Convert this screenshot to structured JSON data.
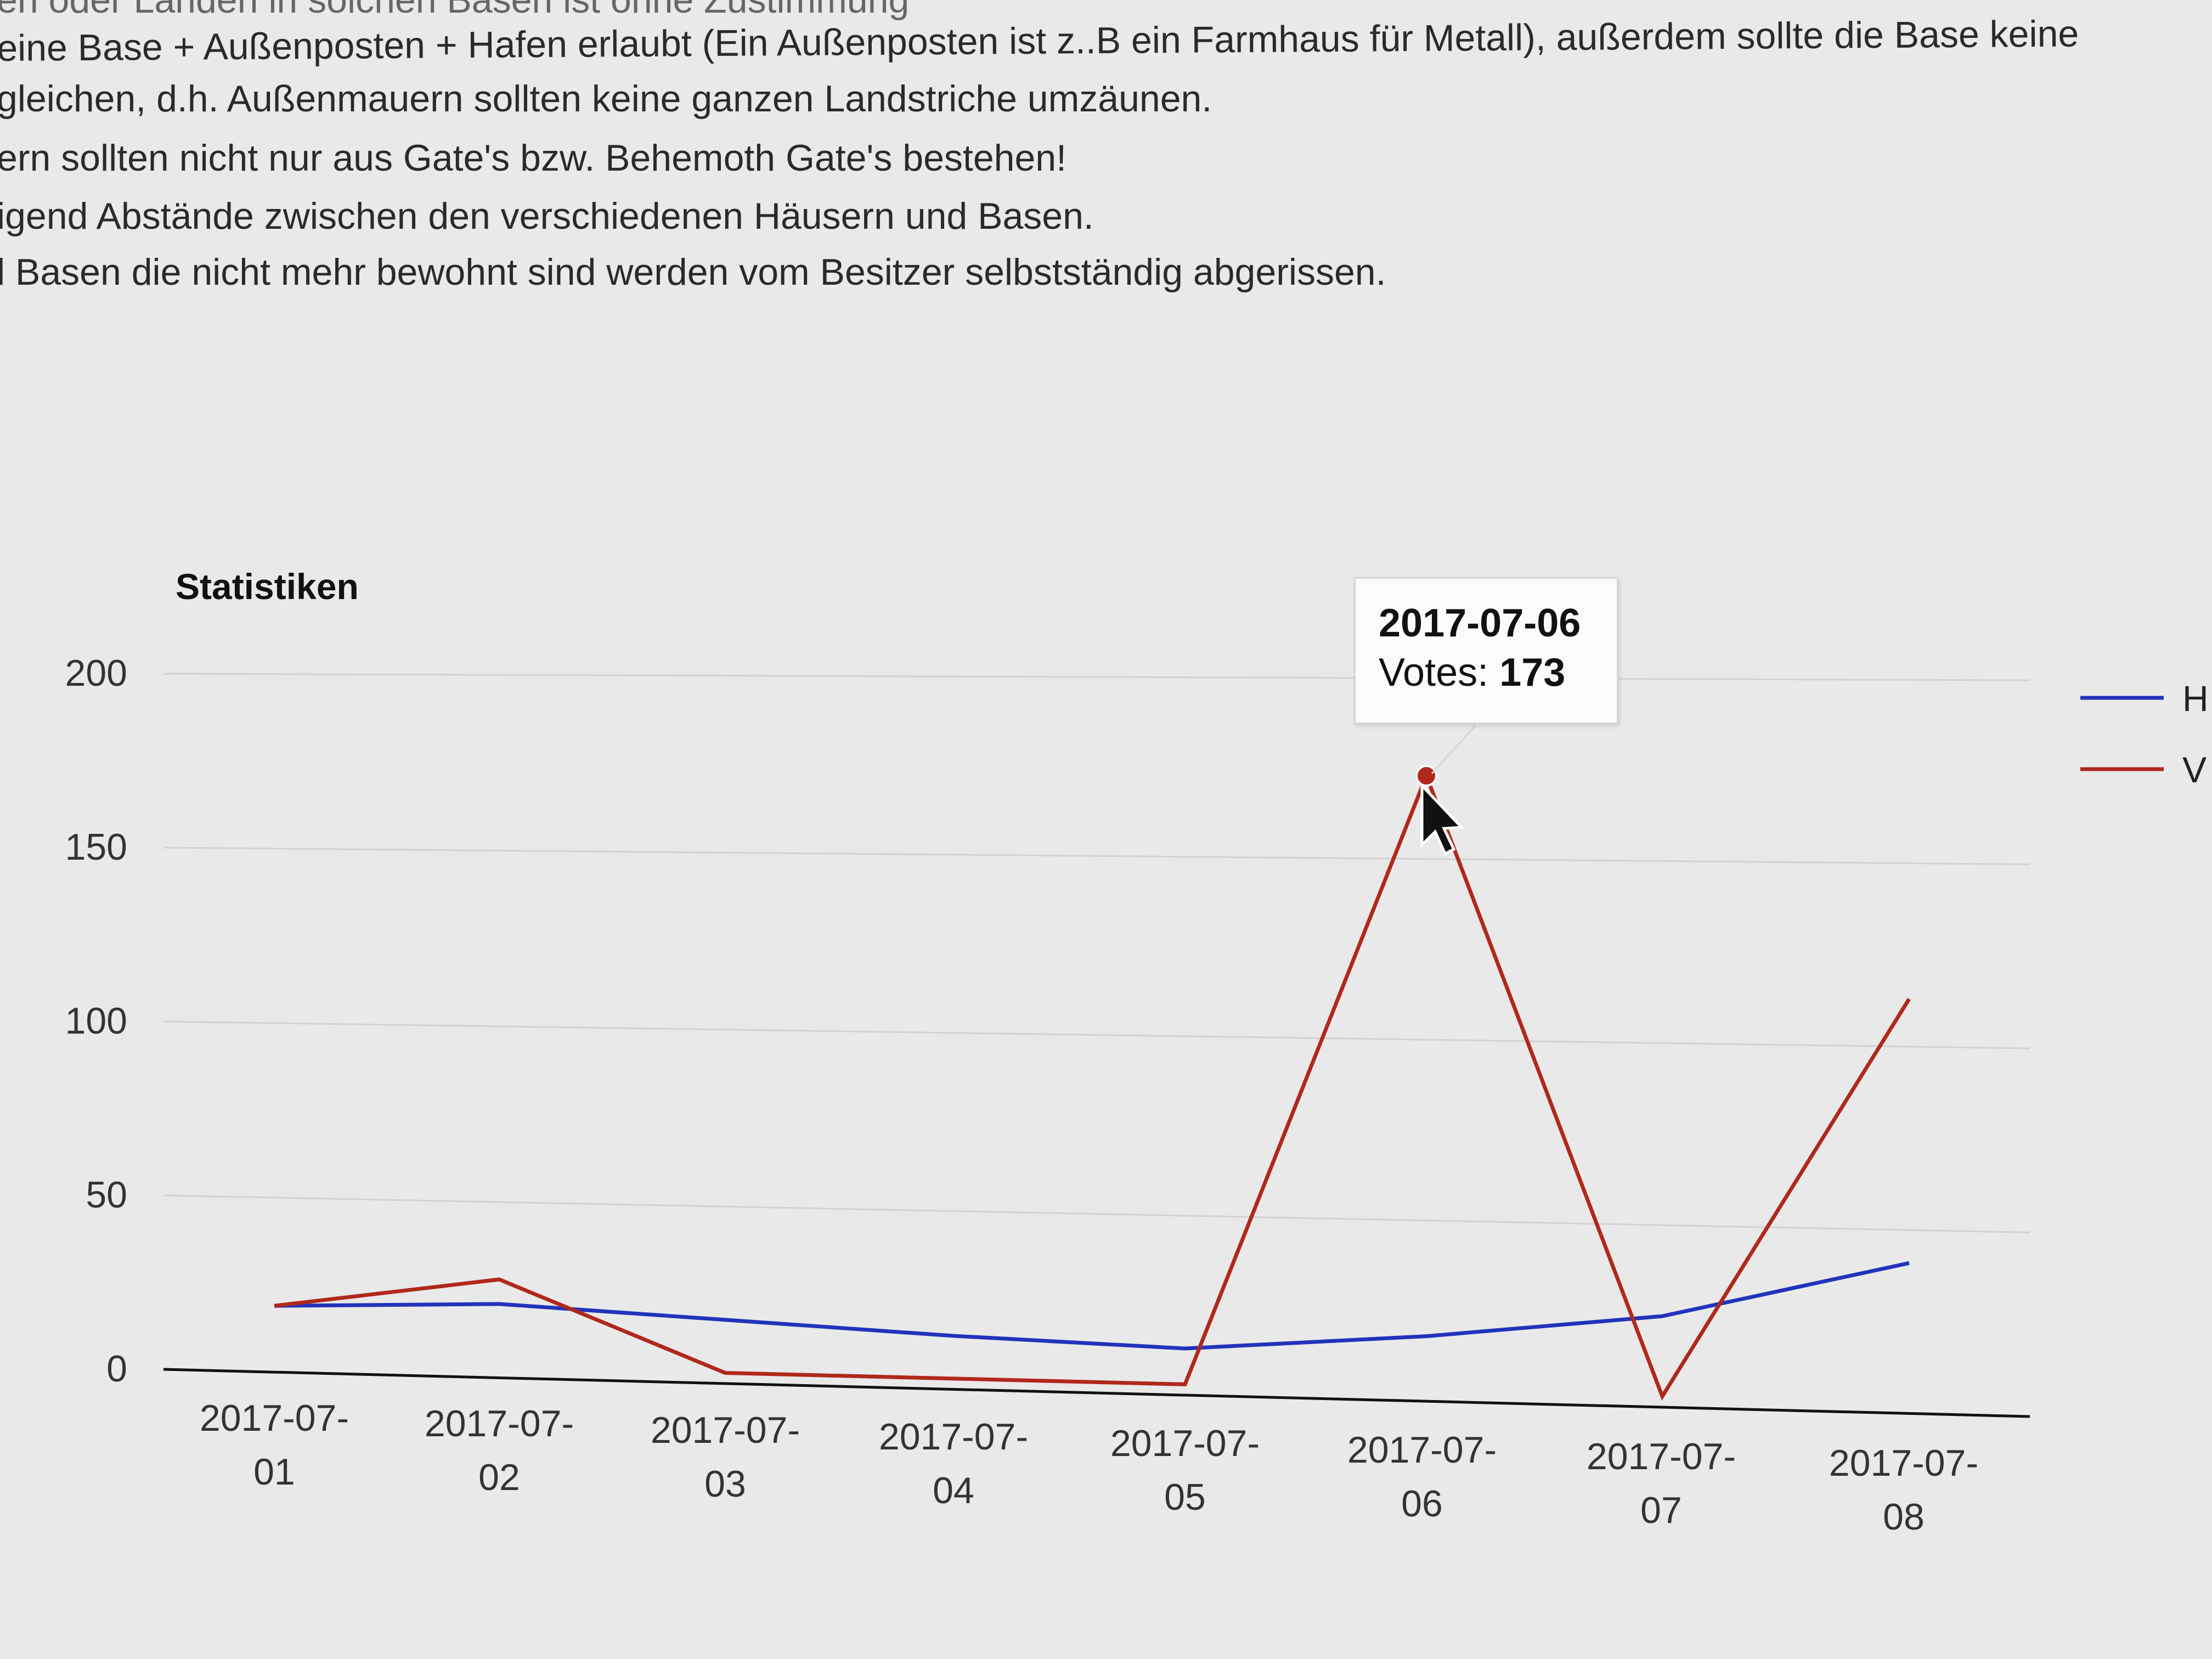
{
  "rules_text": [
    "en oder Landen in solchen Basen ist ohne Zustimmung",
    "eine Base + Außenposten + Hafen erlaubt (Ein Außenposten ist z..B ein Farmhaus für Metall), außerdem sollte die Base keine",
    "gleichen, d.h. Außenmauern sollten keine ganzen Landstriche umzäunen.",
    "ern sollten nicht nur aus Gate's bzw. Behemoth Gate's bestehen!",
    "igend Abstände zwischen den verschiedenen Häusern und Basen.",
    "l Basen die nicht mehr bewohnt sind werden vom Besitzer selbstständig abgerissen."
  ],
  "tooltip": {
    "date": "2017-07-06",
    "label": "Votes:",
    "value": "173"
  },
  "colors": {
    "blue_series": "#2233bb",
    "red_series": "#b0281c",
    "background": "#e9e9e9"
  },
  "chart_data": {
    "type": "line",
    "title": "Statistiken",
    "categories": [
      "2017-07-01",
      "2017-07-02",
      "2017-07-03",
      "2017-07-04",
      "2017-07-05",
      "2017-07-06",
      "2017-07-07",
      "2017-07-08"
    ],
    "category_labels": [
      [
        "2017-07-",
        "01"
      ],
      [
        "2017-07-",
        "02"
      ],
      [
        "2017-07-",
        "03"
      ],
      [
        "2017-07-",
        "04"
      ],
      [
        "2017-07-",
        "05"
      ],
      [
        "2017-07-",
        "06"
      ],
      [
        "2017-07-",
        "07"
      ],
      [
        "2017-07-",
        "08"
      ]
    ],
    "y_ticks": [
      0,
      50,
      100,
      150,
      200
    ],
    "ylim": [
      0,
      200
    ],
    "grid": true,
    "legend_position": "right",
    "series": [
      {
        "name": "H",
        "color": "#2233bb",
        "values": [
          19,
          21,
          18,
          15,
          13,
          18,
          25,
          41
        ]
      },
      {
        "name": "V",
        "color": "#b0281c",
        "values": [
          19,
          28,
          3,
          3,
          3,
          173,
          3,
          113
        ]
      }
    ],
    "highlight": {
      "series": 1,
      "index": 5
    }
  }
}
